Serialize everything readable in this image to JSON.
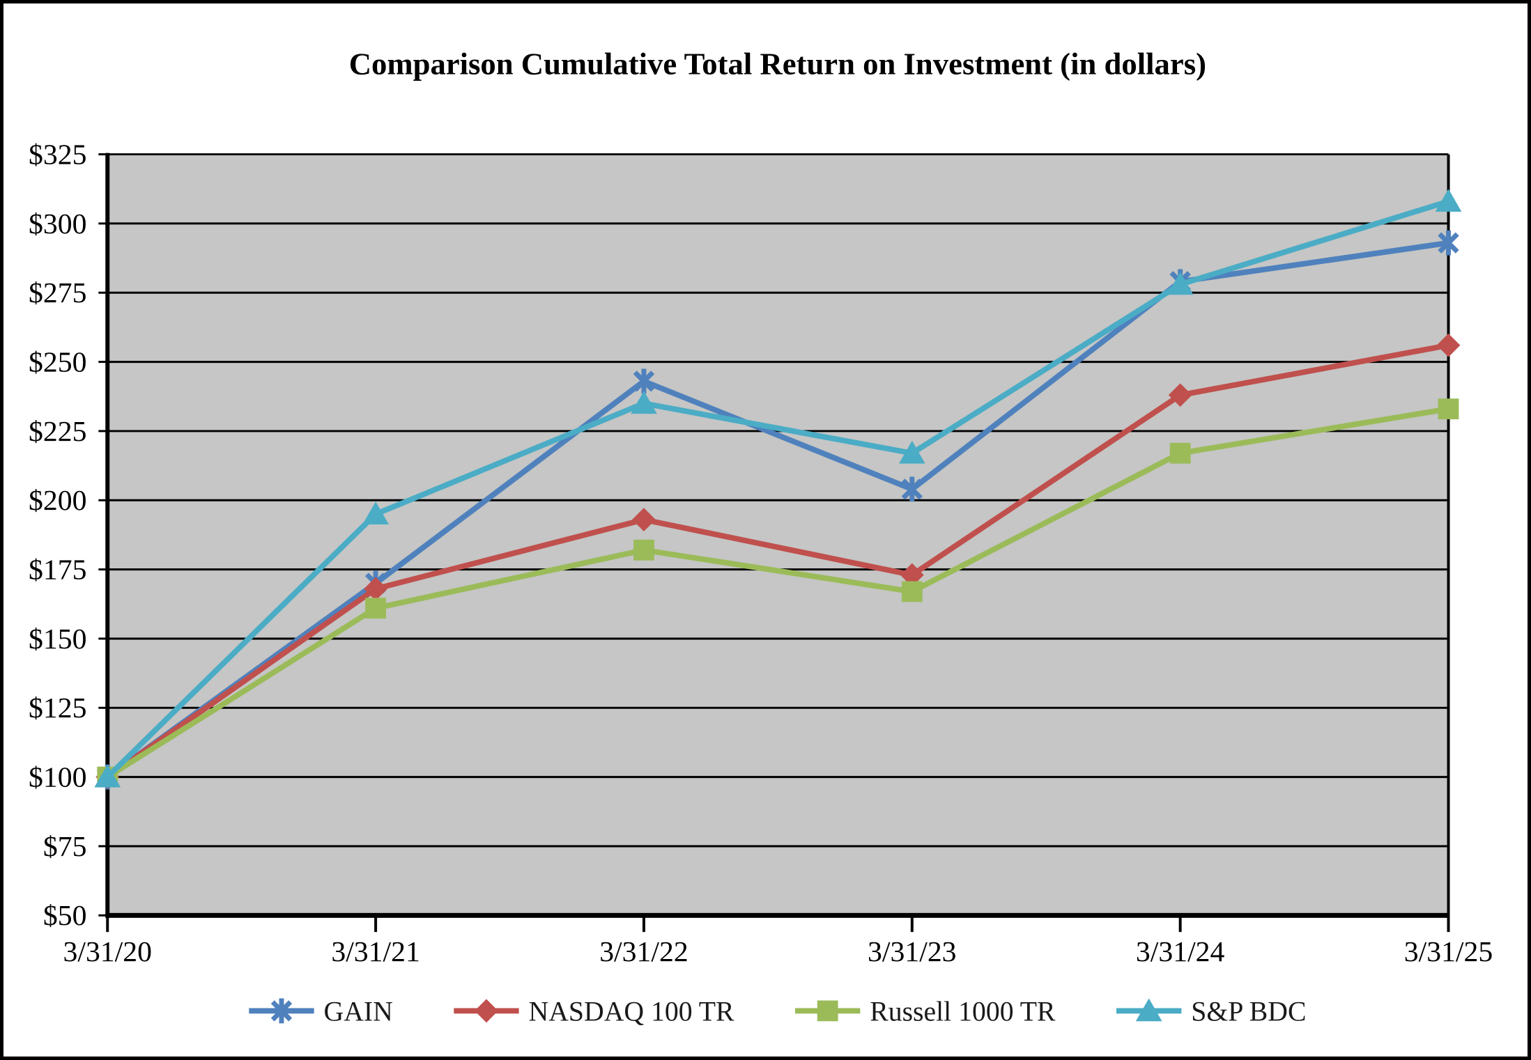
{
  "chart_data": {
    "type": "line",
    "title": "Comparison Cumulative Total Return on Investment (in dollars)",
    "categories": [
      "3/31/20",
      "3/31/21",
      "3/31/22",
      "3/31/23",
      "3/31/24",
      "3/31/25"
    ],
    "series": [
      {
        "name": "GAIN",
        "marker": "asterisk",
        "color": "#4F81BD",
        "values": [
          100,
          170,
          243,
          204,
          279,
          293
        ]
      },
      {
        "name": "NASDAQ 100 TR",
        "marker": "diamond",
        "color": "#C0504D",
        "values": [
          100,
          168,
          193,
          173,
          238,
          256
        ]
      },
      {
        "name": "Russell 1000 TR",
        "marker": "square",
        "color": "#9BBB59",
        "values": [
          100,
          161,
          182,
          167,
          217,
          233
        ]
      },
      {
        "name": "S&P BDC",
        "marker": "triangle",
        "color": "#4BACC6",
        "values": [
          100,
          195,
          235,
          217,
          278,
          308
        ]
      }
    ],
    "y_axis": {
      "min": 50,
      "max": 325,
      "step": 25,
      "tick_prefix": "$",
      "tick_labels": [
        "$50",
        "$75",
        "$100",
        "$125",
        "$150",
        "$175",
        "$200",
        "$225",
        "$250",
        "$275",
        "$300",
        "$325"
      ]
    },
    "x_axis": {
      "tick_labels": [
        "3/31/20",
        "3/31/21",
        "3/31/22",
        "3/31/23",
        "3/31/24",
        "3/31/25"
      ]
    },
    "legend_position": "bottom",
    "grid": "horizontal",
    "colors": {
      "plot_background": "#C5C6C5",
      "gridline": "#000000",
      "axis": "#000000",
      "text": "#000000"
    }
  }
}
